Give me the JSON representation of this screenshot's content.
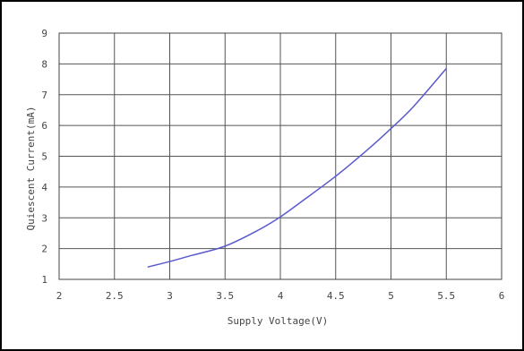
{
  "chart_data": {
    "type": "line",
    "title": "",
    "xlabel": "Supply Voltage(V)",
    "ylabel": "Quiescent Current(mA)",
    "xlim": [
      2,
      6
    ],
    "ylim": [
      1,
      9
    ],
    "x_ticks": [
      2,
      2.5,
      3,
      3.5,
      4,
      4.5,
      5,
      5.5,
      6
    ],
    "y_ticks": [
      1,
      2,
      3,
      4,
      5,
      6,
      7,
      8,
      9
    ],
    "x_tick_labels": [
      "2",
      "2.5",
      "3",
      "3.5",
      "4",
      "4.5",
      "5",
      "5.5",
      "6"
    ],
    "y_tick_labels": [
      "1",
      "2",
      "3",
      "4",
      "5",
      "6",
      "7",
      "8",
      "9"
    ],
    "grid": true,
    "series": [
      {
        "color": "#5a5acc",
        "x": [
          2.8,
          3.0,
          3.2,
          3.5,
          3.8,
          4.0,
          4.2,
          4.5,
          4.8,
          5.0,
          5.2,
          5.5
        ],
        "y": [
          1.4,
          1.58,
          1.78,
          2.08,
          2.6,
          3.03,
          3.55,
          4.35,
          5.25,
          5.9,
          6.6,
          7.85
        ]
      }
    ]
  }
}
